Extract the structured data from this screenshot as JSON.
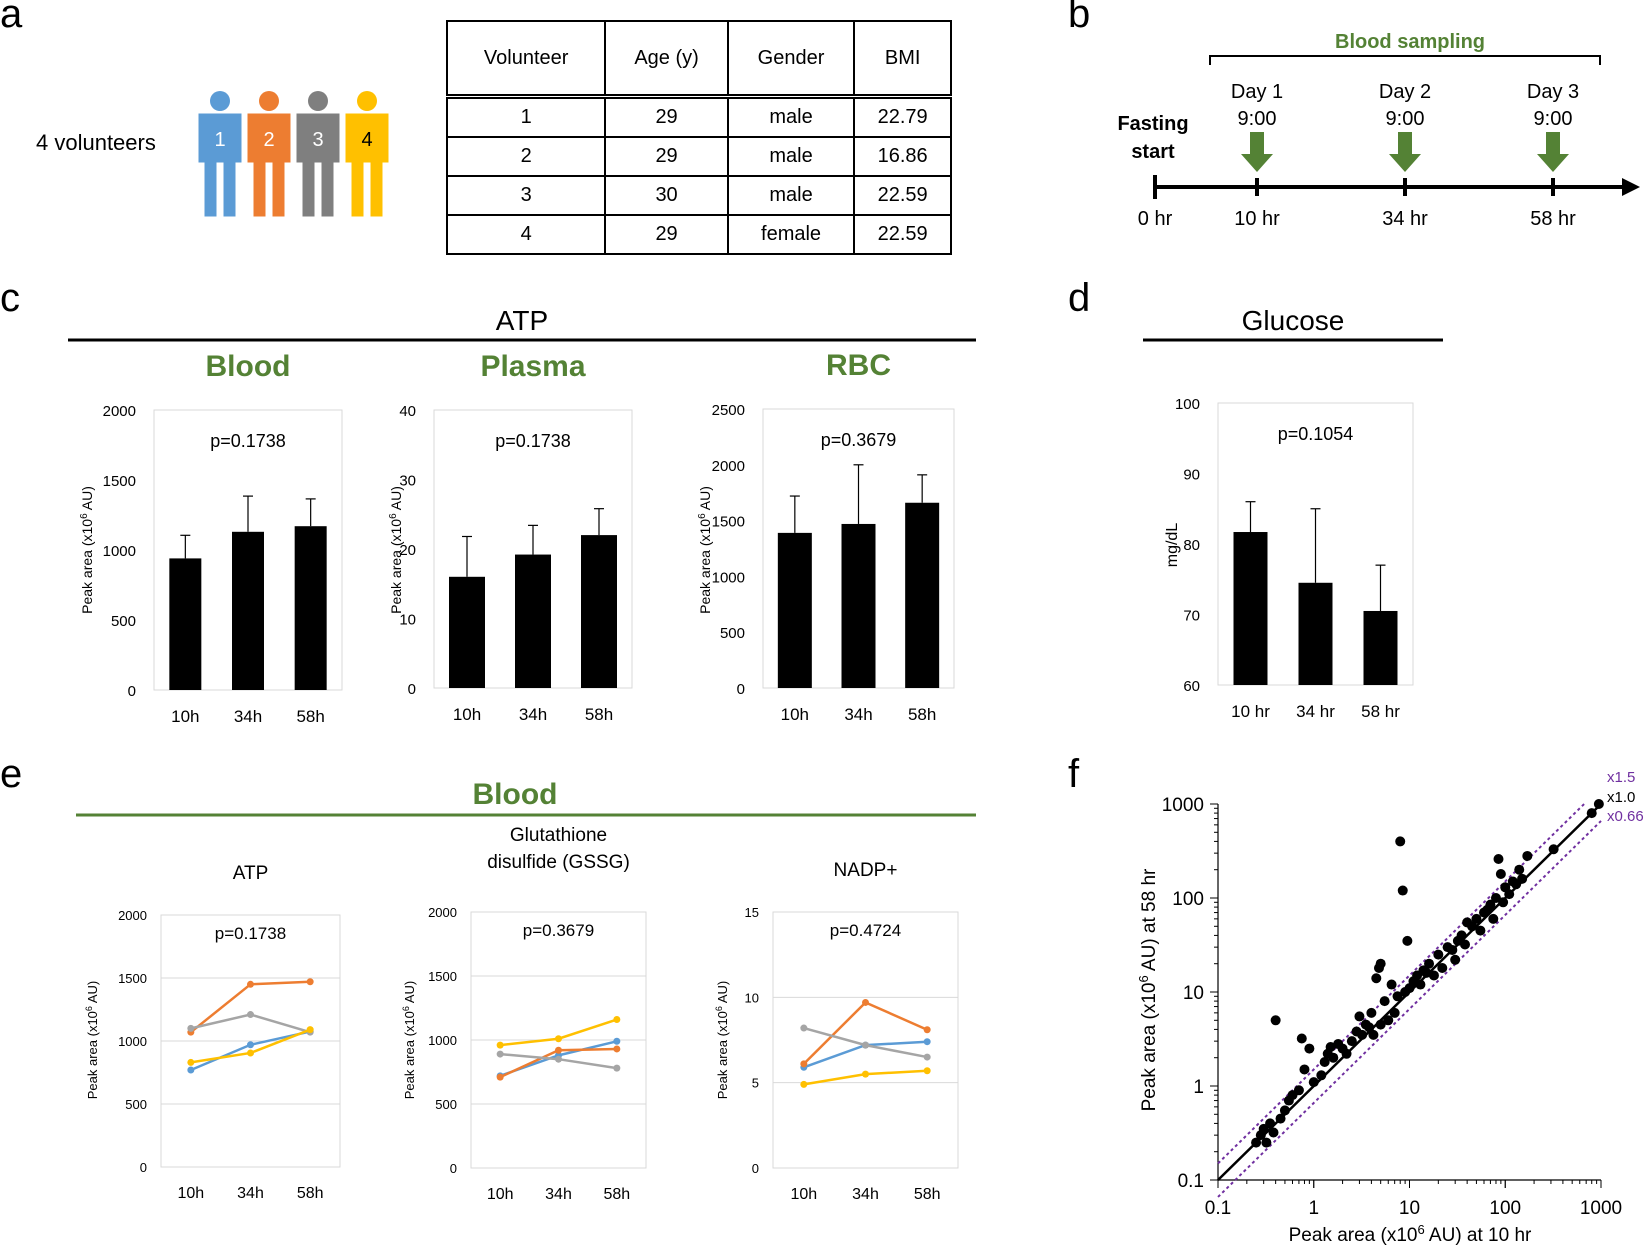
{
  "panels": {
    "a": "a",
    "b": "b",
    "c": "c",
    "d": "d",
    "e": "e",
    "f": "f"
  },
  "volunteers": {
    "label": "4 volunteers",
    "figures": [
      {
        "num": "1",
        "color": "#5b9bd5"
      },
      {
        "num": "2",
        "color": "#ed7d31"
      },
      {
        "num": "3",
        "color": "#7f7f7f"
      },
      {
        "num": "4",
        "color": "#ffc000"
      }
    ],
    "table": {
      "headers": [
        "Volunteer",
        "Age (y)",
        "Gender",
        "BMI"
      ],
      "rows": [
        [
          "1",
          "29",
          "male",
          "22.79"
        ],
        [
          "2",
          "29",
          "male",
          "16.86"
        ],
        [
          "3",
          "30",
          "male",
          "22.59"
        ],
        [
          "4",
          "29",
          "female",
          "22.59"
        ]
      ]
    }
  },
  "timeline": {
    "bracket_label": "Blood sampling",
    "fasting_line1": "Fasting",
    "fasting_line2": "start",
    "days": [
      {
        "day": "Day 1",
        "time": "9:00",
        "hr": "10 hr"
      },
      {
        "day": "Day 2",
        "time": "9:00",
        "hr": "34 hr"
      },
      {
        "day": "Day 3",
        "time": "9:00",
        "hr": "58 hr"
      }
    ],
    "start_hr": "0 hr",
    "accent": "#548235"
  },
  "section_c": {
    "title": "ATP"
  },
  "section_d": {
    "title": "Glucose"
  },
  "section_e": {
    "title": "Blood",
    "accent": "#548235"
  },
  "f_guides": [
    "x1.5",
    "x1.0",
    "x0.66"
  ],
  "chart_data": [
    {
      "id": "c1",
      "type": "bar",
      "title": "Blood",
      "pvalue": "p=0.1738",
      "ylabel": "Peak area (x10^6 AU)",
      "categories": [
        "10h",
        "34h",
        "58h"
      ],
      "values": [
        940,
        1130,
        1170
      ],
      "errors": [
        165,
        255,
        195
      ],
      "ylim": [
        0,
        2000
      ],
      "ticks": [
        0,
        500,
        1000,
        1500,
        2000
      ]
    },
    {
      "id": "c2",
      "type": "bar",
      "title": "Plasma",
      "pvalue": "p=0.1738",
      "ylabel": "Peak area (x10^6 AU)",
      "categories": [
        "10h",
        "34h",
        "58h"
      ],
      "values": [
        16,
        19.2,
        22
      ],
      "errors": [
        5.8,
        4.2,
        3.8
      ],
      "ylim": [
        0,
        40
      ],
      "ticks": [
        0,
        10,
        20,
        30,
        40
      ]
    },
    {
      "id": "c3",
      "type": "bar",
      "title": "RBC",
      "pvalue": "p=0.3679",
      "ylabel": "Peak area (x10^6 AU)",
      "categories": [
        "10h",
        "34h",
        "58h"
      ],
      "values": [
        1390,
        1470,
        1660
      ],
      "errors": [
        330,
        530,
        250
      ],
      "ylim": [
        0,
        2500
      ],
      "ticks": [
        0,
        500,
        1000,
        1500,
        2000,
        2500
      ]
    },
    {
      "id": "d1",
      "type": "bar",
      "title": "",
      "pvalue": "p=0.1054",
      "ylabel": "mg/dL",
      "categories": [
        "10 hr",
        "34 hr",
        "58 hr"
      ],
      "values": [
        81.7,
        74.5,
        70.5
      ],
      "errors": [
        4.3,
        10.5,
        6.5
      ],
      "ylim": [
        60,
        100
      ],
      "ticks": [
        60,
        70,
        80,
        90,
        100
      ]
    },
    {
      "id": "e1",
      "type": "line",
      "title": "ATP",
      "title2": "",
      "pvalue": "p=0.1738",
      "ylabel": "Peak area (x10^6 AU)",
      "categories": [
        "10h",
        "34h",
        "58h"
      ],
      "ylim": [
        0,
        2000
      ],
      "ticks": [
        0,
        500,
        1000,
        1500,
        2000
      ],
      "series": [
        {
          "name": "1",
          "color": "#5b9bd5",
          "values": [
            770,
            970,
            1075
          ]
        },
        {
          "name": "2",
          "color": "#ed7d31",
          "values": [
            1070,
            1450,
            1470
          ]
        },
        {
          "name": "3",
          "color": "#a5a5a5",
          "values": [
            1100,
            1210,
            1070
          ]
        },
        {
          "name": "4",
          "color": "#ffc000",
          "values": [
            830,
            905,
            1090
          ]
        }
      ]
    },
    {
      "id": "e2",
      "type": "line",
      "title": "Glutathione",
      "title2": "disulfide  (GSSG)",
      "pvalue": "p=0.3679",
      "ylabel": "Peak area (x10^6 AU)",
      "categories": [
        "10h",
        "34h",
        "58h"
      ],
      "ylim": [
        0,
        2000
      ],
      "ticks": [
        0,
        500,
        1000,
        1500,
        2000
      ],
      "series": [
        {
          "name": "1",
          "color": "#5b9bd5",
          "values": [
            720,
            880,
            990
          ]
        },
        {
          "name": "2",
          "color": "#ed7d31",
          "values": [
            710,
            920,
            930
          ]
        },
        {
          "name": "3",
          "color": "#a5a5a5",
          "values": [
            890,
            850,
            780
          ]
        },
        {
          "name": "4",
          "color": "#ffc000",
          "values": [
            960,
            1010,
            1160
          ]
        }
      ]
    },
    {
      "id": "e3",
      "type": "line",
      "title": "NADP+",
      "title2": "",
      "pvalue": "p=0.4724",
      "ylabel": "Peak area (x10^6 AU)",
      "categories": [
        "10h",
        "34h",
        "58h"
      ],
      "ylim": [
        0,
        15
      ],
      "ticks": [
        0,
        5,
        10,
        15
      ],
      "series": [
        {
          "name": "1",
          "color": "#5b9bd5",
          "values": [
            5.9,
            7.2,
            7.4
          ]
        },
        {
          "name": "2",
          "color": "#ed7d31",
          "values": [
            6.1,
            9.7,
            8.1
          ]
        },
        {
          "name": "3",
          "color": "#a5a5a5",
          "values": [
            8.2,
            7.2,
            6.5
          ]
        },
        {
          "name": "4",
          "color": "#ffc000",
          "values": [
            4.9,
            5.5,
            5.7
          ]
        }
      ]
    },
    {
      "id": "f1",
      "type": "scatter",
      "xscale": "log",
      "yscale": "log",
      "xlabel": "Peak area (x10^6 AU) at 10 hr",
      "ylabel": "Peak area (x10^6 AU) at 58 hr",
      "xlim": [
        0.1,
        1000
      ],
      "ylim": [
        0.1,
        1000
      ],
      "xticks": [
        "0.1",
        "1",
        "10",
        "100",
        "1000"
      ],
      "yticks": [
        "0.1",
        "1",
        "10",
        "100",
        "1000"
      ],
      "guides": [
        1.5,
        1.0,
        0.66
      ],
      "points": [
        [
          0.25,
          0.25
        ],
        [
          0.28,
          0.3
        ],
        [
          0.3,
          0.35
        ],
        [
          0.32,
          0.25
        ],
        [
          0.35,
          0.4
        ],
        [
          0.38,
          0.32
        ],
        [
          0.4,
          5
        ],
        [
          0.45,
          0.45
        ],
        [
          0.5,
          0.55
        ],
        [
          0.55,
          0.7
        ],
        [
          0.6,
          0.8
        ],
        [
          0.7,
          0.9
        ],
        [
          0.75,
          3.2
        ],
        [
          0.8,
          1.5
        ],
        [
          0.9,
          2.5
        ],
        [
          1.0,
          1.1
        ],
        [
          1.2,
          1.3
        ],
        [
          1.3,
          1.8
        ],
        [
          1.4,
          2.2
        ],
        [
          1.5,
          2.6
        ],
        [
          1.6,
          2.0
        ],
        [
          1.8,
          2.8
        ],
        [
          2,
          2.5
        ],
        [
          2.2,
          2.2
        ],
        [
          2.5,
          3.0
        ],
        [
          2.8,
          3.8
        ],
        [
          3,
          5.5
        ],
        [
          3.2,
          3.5
        ],
        [
          3.5,
          4.5
        ],
        [
          3.8,
          4.2
        ],
        [
          4,
          6
        ],
        [
          4.2,
          3.5
        ],
        [
          4.5,
          14
        ],
        [
          4.8,
          18
        ],
        [
          5,
          20
        ],
        [
          5,
          4.5
        ],
        [
          5.5,
          8
        ],
        [
          6,
          5
        ],
        [
          6.5,
          12
        ],
        [
          7,
          6
        ],
        [
          7.5,
          9
        ],
        [
          8,
          400
        ],
        [
          8.5,
          120
        ],
        [
          9,
          10
        ],
        [
          9.5,
          35
        ],
        [
          10,
          11
        ],
        [
          11,
          13
        ],
        [
          12,
          15
        ],
        [
          13,
          12
        ],
        [
          14,
          17
        ],
        [
          15,
          16
        ],
        [
          16,
          20
        ],
        [
          18,
          15
        ],
        [
          20,
          25
        ],
        [
          22,
          18
        ],
        [
          25,
          30
        ],
        [
          28,
          28
        ],
        [
          30,
          22
        ],
        [
          32,
          35
        ],
        [
          35,
          40
        ],
        [
          38,
          32
        ],
        [
          40,
          55
        ],
        [
          45,
          50
        ],
        [
          50,
          60
        ],
        [
          55,
          45
        ],
        [
          60,
          70
        ],
        [
          65,
          75
        ],
        [
          70,
          85
        ],
        [
          75,
          60
        ],
        [
          80,
          100
        ],
        [
          85,
          260
        ],
        [
          90,
          180
        ],
        [
          95,
          90
        ],
        [
          100,
          130
        ],
        [
          110,
          110
        ],
        [
          120,
          150
        ],
        [
          130,
          140
        ],
        [
          140,
          200
        ],
        [
          150,
          160
        ],
        [
          170,
          280
        ],
        [
          320,
          330
        ],
        [
          800,
          800
        ],
        [
          950,
          1000
        ]
      ]
    }
  ]
}
